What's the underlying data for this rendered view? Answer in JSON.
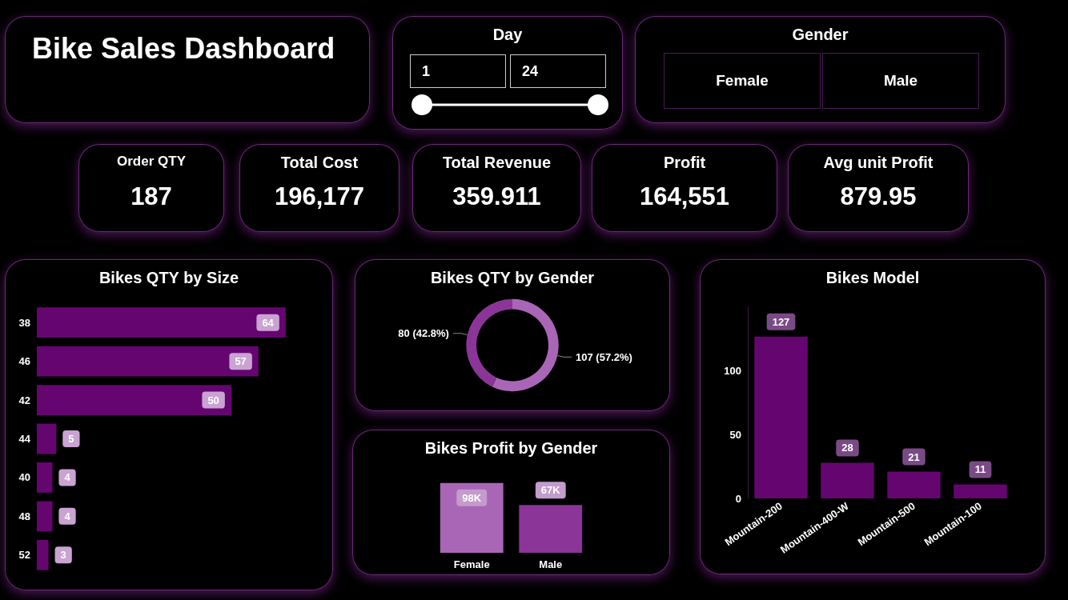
{
  "chart_data": [
    {
      "type": "other",
      "title": "Bike Sales Dashboard"
    },
    {
      "type": "other",
      "title": "Day",
      "annotations": [
        "1",
        "24"
      ]
    },
    {
      "type": "other",
      "title": "Gender",
      "categories": [
        "Female",
        "Male"
      ]
    },
    {
      "type": "other",
      "categories": [
        "Order QTY",
        "Total Cost",
        "Total Revenue",
        "Profit",
        "Avg unit Profit"
      ],
      "annotations": [
        "187",
        "196,177",
        "359.911",
        "164,551",
        "879.95"
      ]
    },
    {
      "type": "bar",
      "title": "Bikes QTY by Size",
      "orientation": "horizontal",
      "categories": [
        "38",
        "46",
        "42",
        "44",
        "40",
        "48",
        "52"
      ],
      "values": [
        64,
        57,
        50,
        5,
        4,
        4,
        3
      ],
      "color": "#650570",
      "data_labels": true,
      "tick_labels": "y",
      "grid": false
    },
    {
      "type": "donut",
      "title": "Bikes QTY by Gender",
      "categories": [
        null,
        null
      ],
      "values": [
        107,
        80
      ],
      "colors": [
        "#a966b6",
        "#8b3598"
      ],
      "value_labels": [
        "107 (57.2%)",
        "80 (42.8%)"
      ]
    },
    {
      "type": "bar",
      "title": "Bikes Profit by Gender",
      "categories": [
        "Female",
        "Male"
      ],
      "values": [
        98000,
        67000
      ],
      "colors": [
        "#a966b6",
        "#8b3598"
      ],
      "value_labels": [
        "98K",
        "67K"
      ],
      "tick_labels": "x",
      "grid": false
    },
    {
      "type": "bar",
      "title": "Bikes Model",
      "categories": [
        "Mountain-200",
        "Mountain-400-W",
        "Mountain-500",
        "Mountain-100"
      ],
      "values": [
        127,
        28,
        21,
        11
      ],
      "color": "#650570",
      "ylim": [
        0,
        150
      ],
      "yticks": [
        0,
        50,
        100
      ],
      "data_labels": true,
      "grid": false
    }
  ]
}
